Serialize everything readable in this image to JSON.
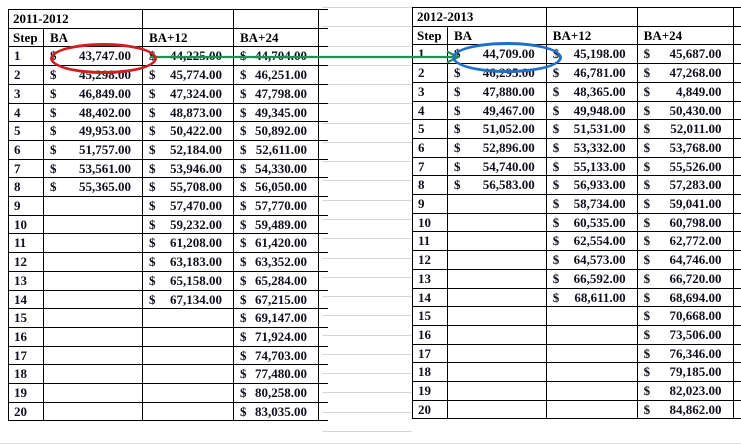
{
  "currency_symbol": "$",
  "annotations": {
    "red_ellipse": {
      "color": "#cc2020",
      "target": "2011-2012-step-1-ba",
      "value": "43,747.00"
    },
    "blue_ellipse": {
      "color": "#1d6fc9",
      "target": "2012-2013-step-1-ba",
      "value": "44,709.00"
    },
    "connector_arrow": {
      "color": "#1f9150",
      "direction": "left-to-right"
    }
  },
  "tables": [
    {
      "year_label": "2011-2012",
      "columns": [
        "Step",
        "BA",
        "BA+12",
        "BA+24"
      ],
      "rows": [
        [
          "1",
          "43,747.00",
          "44,225.00",
          "44,704.00"
        ],
        [
          "2",
          "45,298.00",
          "45,774.00",
          "46,251.00"
        ],
        [
          "3",
          "46,849.00",
          "47,324.00",
          "47,798.00"
        ],
        [
          "4",
          "48,402.00",
          "48,873.00",
          "49,345.00"
        ],
        [
          "5",
          "49,953.00",
          "50,422.00",
          "50,892.00"
        ],
        [
          "6",
          "51,757.00",
          "52,184.00",
          "52,611.00"
        ],
        [
          "7",
          "53,561.00",
          "53,946.00",
          "54,330.00"
        ],
        [
          "8",
          "55,365.00",
          "55,708.00",
          "56,050.00"
        ],
        [
          "9",
          "",
          "57,470.00",
          "57,770.00"
        ],
        [
          "10",
          "",
          "59,232.00",
          "59,489.00"
        ],
        [
          "11",
          "",
          "61,208.00",
          "61,420.00"
        ],
        [
          "12",
          "",
          "63,183.00",
          "63,352.00"
        ],
        [
          "13",
          "",
          "65,158.00",
          "65,284.00"
        ],
        [
          "14",
          "",
          "67,134.00",
          "67,215.00"
        ],
        [
          "15",
          "",
          "",
          "69,147.00"
        ],
        [
          "16",
          "",
          "",
          "71,924.00"
        ],
        [
          "17",
          "",
          "",
          "74,703.00"
        ],
        [
          "18",
          "",
          "",
          "77,480.00"
        ],
        [
          "19",
          "",
          "",
          "80,258.00"
        ],
        [
          "20",
          "",
          "",
          "83,035.00"
        ]
      ]
    },
    {
      "year_label": "2012-2013",
      "columns": [
        "Step",
        "BA",
        "BA+12",
        "BA+24"
      ],
      "rows": [
        [
          "1",
          "44,709.00",
          "45,198.00",
          "45,687.00"
        ],
        [
          "2",
          "46,295.00",
          "46,781.00",
          "47,268.00"
        ],
        [
          "3",
          "47,880.00",
          "48,365.00",
          "4,849.00"
        ],
        [
          "4",
          "49,467.00",
          "49,948.00",
          "50,430.00"
        ],
        [
          "5",
          "51,052.00",
          "51,531.00",
          "52,011.00"
        ],
        [
          "6",
          "52,896.00",
          "53,332.00",
          "53,768.00"
        ],
        [
          "7",
          "54,740.00",
          "55,133.00",
          "55,526.00"
        ],
        [
          "8",
          "56,583.00",
          "56,933.00",
          "57,283.00"
        ],
        [
          "9",
          "",
          "58,734.00",
          "59,041.00"
        ],
        [
          "10",
          "",
          "60,535.00",
          "60,798.00"
        ],
        [
          "11",
          "",
          "62,554.00",
          "62,772.00"
        ],
        [
          "12",
          "",
          "64,573.00",
          "64,746.00"
        ],
        [
          "13",
          "",
          "66,592.00",
          "66,720.00"
        ],
        [
          "14",
          "",
          "68,611.00",
          "68,694.00"
        ],
        [
          "15",
          "",
          "",
          "70,668.00"
        ],
        [
          "16",
          "",
          "",
          "73,506.00"
        ],
        [
          "17",
          "",
          "",
          "76,346.00"
        ],
        [
          "18",
          "",
          "",
          "79,185.00"
        ],
        [
          "19",
          "",
          "",
          "82,023.00"
        ],
        [
          "20",
          "",
          "",
          "84,862.00"
        ]
      ]
    }
  ]
}
